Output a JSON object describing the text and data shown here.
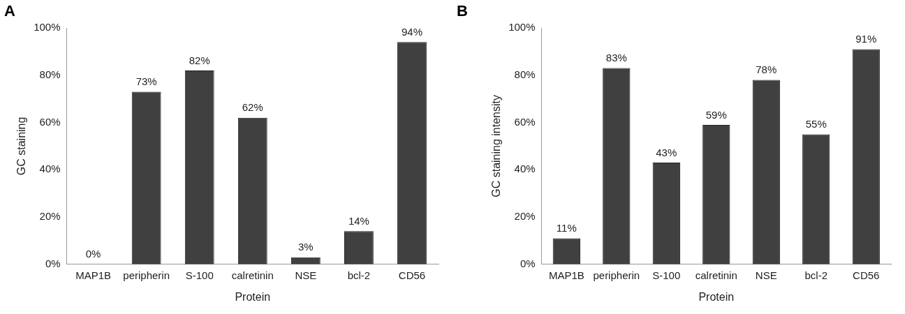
{
  "chart_data": [
    {
      "type": "bar",
      "title": "A",
      "xlabel": "Protein",
      "ylabel": "GC staining",
      "categories": [
        "MAP1B",
        "peripherin",
        "S-100",
        "calretinin",
        "NSE",
        "bcl-2",
        "CD56"
      ],
      "values": [
        0,
        73,
        82,
        62,
        3,
        14,
        94
      ],
      "value_labels": [
        "0%",
        "73%",
        "82%",
        "62%",
        "3%",
        "14%",
        "94%"
      ],
      "color": "#404040",
      "ylim": [
        0,
        100
      ],
      "yticks": [
        {
          "value": 0,
          "label": "0%"
        },
        {
          "value": 20,
          "label": "20%"
        },
        {
          "value": 40,
          "label": "40%"
        },
        {
          "value": 60,
          "label": "60%"
        },
        {
          "value": 80,
          "label": "80%"
        },
        {
          "value": 100,
          "label": "100%"
        }
      ]
    },
    {
      "type": "bar",
      "title": "B",
      "xlabel": "Protein",
      "ylabel": "GC staining intensity",
      "categories": [
        "MAP1B",
        "peripherin",
        "S-100",
        "calretinin",
        "NSE",
        "bcl-2",
        "CD56"
      ],
      "values": [
        11,
        83,
        43,
        59,
        78,
        55,
        91
      ],
      "value_labels": [
        "11%",
        "83%",
        "43%",
        "59%",
        "78%",
        "55%",
        "91%"
      ],
      "color": "#404040",
      "ylim": [
        0,
        100
      ],
      "yticks": [
        {
          "value": 0,
          "label": "0%"
        },
        {
          "value": 20,
          "label": "20%"
        },
        {
          "value": 40,
          "label": "40%"
        },
        {
          "value": 60,
          "label": "60%"
        },
        {
          "value": 80,
          "label": "80%"
        },
        {
          "value": 100,
          "label": "100%"
        }
      ]
    }
  ]
}
